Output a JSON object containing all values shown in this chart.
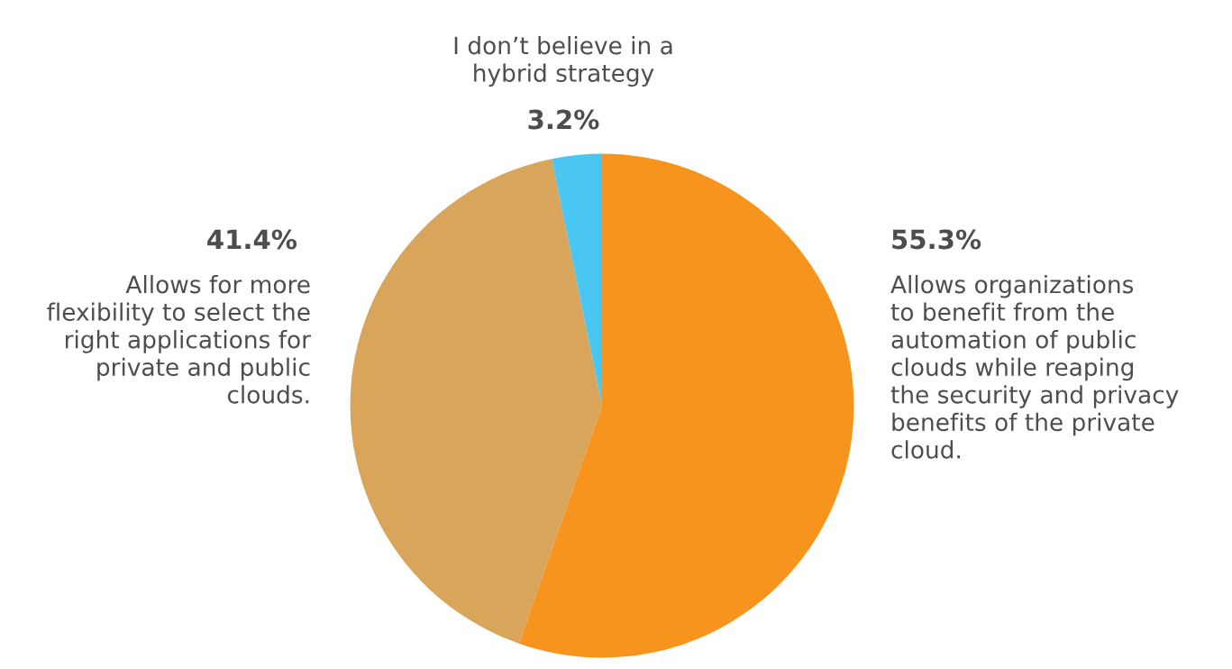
{
  "chart_data": {
    "type": "pie",
    "categories": [
      "Allows organizations\nto benefit from the\nautomation of public\nclouds while reaping\nthe security and privacy\nbenefits of the private\ncloud.",
      "Allows for more\nflexibility to select the\nright applications for\nprivate and public\nclouds.",
      "I don’t believe in a\nhybrid strategy"
    ],
    "values": [
      55.3,
      41.4,
      3.2
    ],
    "value_labels": [
      "55.3%",
      "41.4%",
      "3.2%"
    ],
    "colors": [
      "#f7941d",
      "#d9a55b",
      "#4ac6f2"
    ],
    "legend": false
  }
}
